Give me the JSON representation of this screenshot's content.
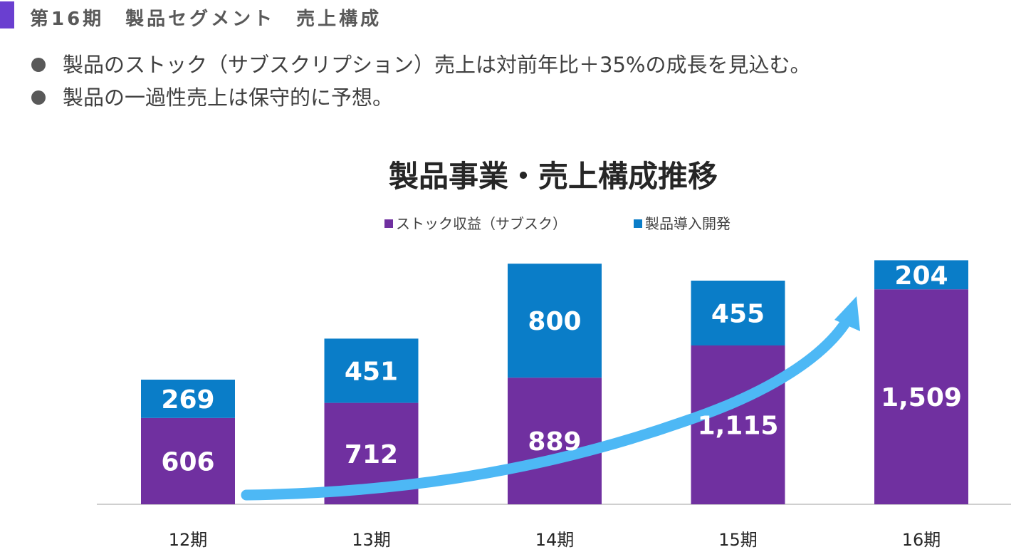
{
  "section": {
    "title": "第16期　製品セグメント　売上構成"
  },
  "bullets": [
    "製品のストック（サブスクリプション）売上は対前年比＋35%の成長を見込む。",
    "製品の一過性売上は保守的に予想。"
  ],
  "colors": {
    "accent": "#6a3fd0",
    "stock": "#7030a0",
    "onetime": "#0a7dc8",
    "arrow": "#4db8f5",
    "axis": "#bfbfbf"
  },
  "chart_data": {
    "type": "bar",
    "stacked": true,
    "title": "製品事業・売上構成推移",
    "categories": [
      "12期",
      "13期",
      "14期",
      "15期",
      "16期"
    ],
    "series": [
      {
        "name": "ストック収益（サブスク）",
        "values": [
          606,
          712,
          889,
          1115,
          1509
        ],
        "labels": [
          "606",
          "712",
          "889",
          "1,115",
          "1,509"
        ],
        "color": "#7030a0"
      },
      {
        "name": "製品導入開発",
        "values": [
          269,
          451,
          800,
          455,
          204
        ],
        "labels": [
          "269",
          "451",
          "800",
          "455",
          "204"
        ],
        "color": "#0a7dc8"
      }
    ],
    "legend_position": "top",
    "grid": false,
    "annotation": "upward-trend-arrow"
  }
}
